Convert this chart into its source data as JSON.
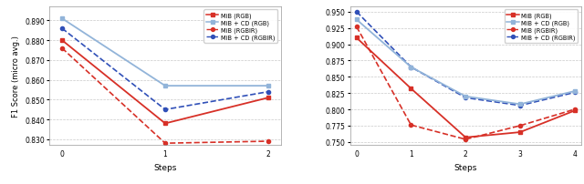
{
  "left": {
    "steps": [
      0,
      1,
      2
    ],
    "mib_rgb": [
      0.88,
      0.838,
      0.851
    ],
    "mibcd_rgb": [
      0.891,
      0.857,
      0.857
    ],
    "mib_rgbir": [
      0.876,
      0.828,
      0.829
    ],
    "mibcd_rgbir": [
      0.886,
      0.845,
      0.854
    ],
    "ylim": [
      0.827,
      0.897
    ],
    "yticks": [
      0.83,
      0.84,
      0.85,
      0.86,
      0.87,
      0.88,
      0.89
    ]
  },
  "right": {
    "steps": [
      0,
      1,
      2,
      3,
      4
    ],
    "mib_rgb": [
      0.91,
      0.832,
      0.757,
      0.765,
      0.798
    ],
    "mibcd_rgb": [
      0.938,
      0.865,
      0.82,
      0.808,
      0.828
    ],
    "mib_rgbir": [
      0.927,
      0.776,
      0.754,
      0.775,
      0.8
    ],
    "mibcd_rgbir": [
      0.95,
      0.865,
      0.818,
      0.806,
      0.826
    ],
    "ylim": [
      0.745,
      0.958
    ],
    "yticks": [
      0.75,
      0.775,
      0.8,
      0.825,
      0.85,
      0.875,
      0.9,
      0.925,
      0.95
    ]
  },
  "color_red_solid": "#d73027",
  "color_blue_solid": "#92b4d9",
  "color_red_dashed": "#d73027",
  "color_blue_dashed": "#3050b8",
  "legend_labels": [
    "MiB (RGB)",
    "MiB + CD (RGB)",
    "MiB (RGBIR)",
    "MiB + CD (RGBIR)"
  ],
  "xlabel": "Steps",
  "ylabel": "F1 Score (micro avg.)",
  "bg_color": "#ffffff",
  "grid_color": "#bbbbbb"
}
